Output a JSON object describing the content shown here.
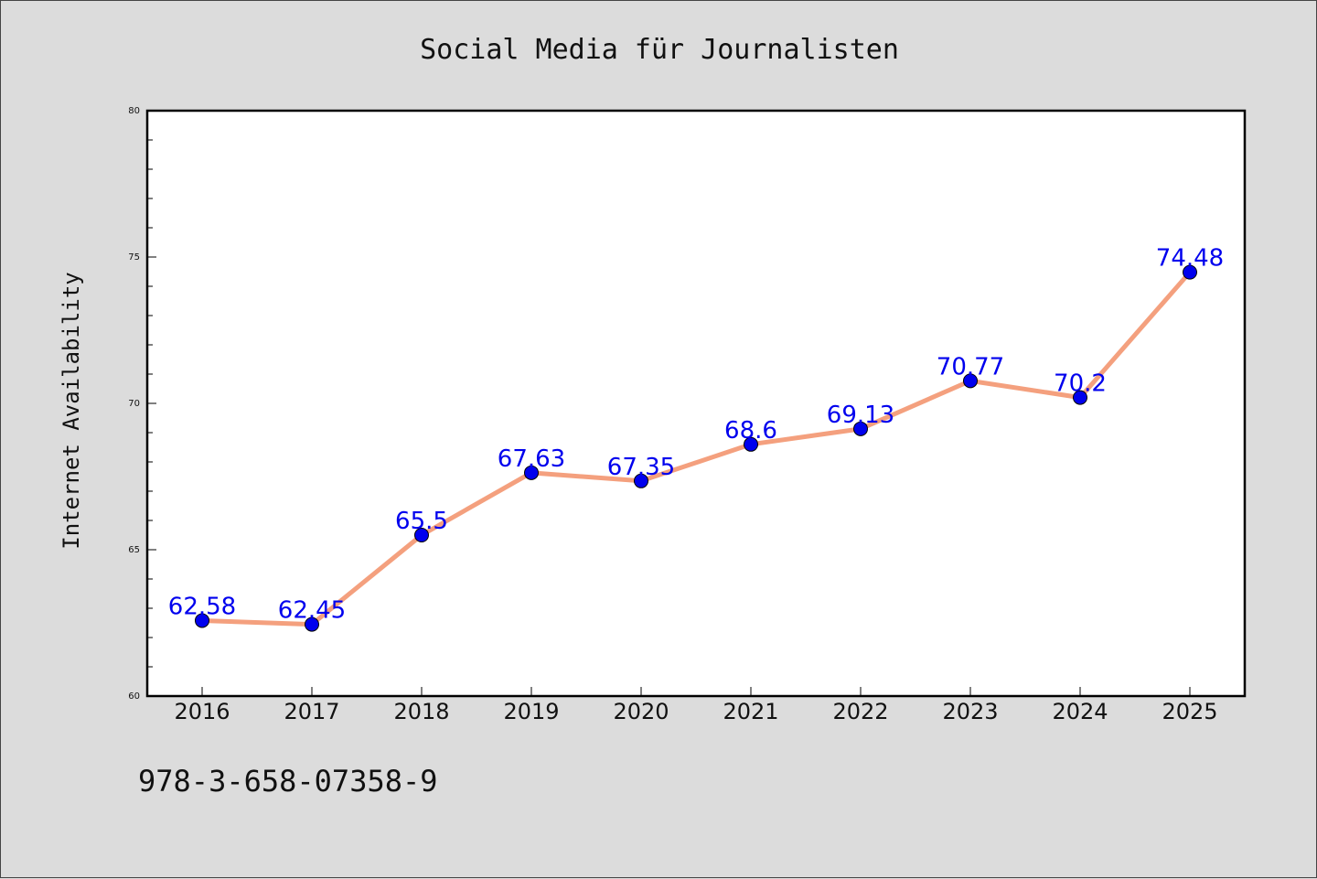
{
  "footer": {
    "isbn": "978-3-658-07358-9"
  },
  "chart_data": {
    "type": "line",
    "title": "Social Media für Journalisten",
    "xlabel": "",
    "ylabel": "Internet Availability",
    "x": [
      "2016",
      "2017",
      "2018",
      "2019",
      "2020",
      "2021",
      "2022",
      "2023",
      "2024",
      "2025"
    ],
    "series": [
      {
        "values": [
          62.58,
          62.45,
          65.5,
          67.63,
          67.35,
          68.6,
          69.13,
          70.77,
          70.2,
          74.48
        ],
        "labels": [
          "62.58",
          "62.45",
          "65.5",
          "67.63",
          "67.35",
          "68.6",
          "69.13",
          "70.77",
          "70.2",
          "74.48"
        ],
        "line_color": "#f4a07e",
        "marker_color": "#0000ee"
      }
    ],
    "ylim": [
      60,
      80
    ],
    "yticks": [
      "60",
      "65",
      "70",
      "75",
      "80"
    ],
    "grid": false,
    "legend": "none"
  }
}
